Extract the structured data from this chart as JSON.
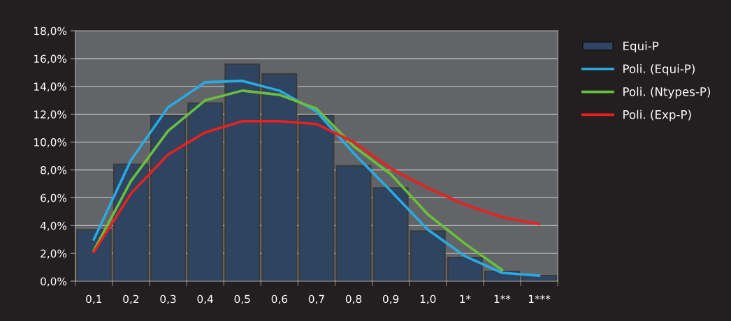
{
  "chart_data": {
    "type": "bar",
    "categories": [
      "0,1",
      "0,2",
      "0,3",
      "0,4",
      "0,5",
      "0,6",
      "0,7",
      "0,8",
      "0,9",
      "1,0",
      "1*",
      "1**",
      "1***"
    ],
    "series": [
      {
        "name": "Equi-P",
        "color": "#2e4460",
        "values": [
          3.7,
          8.4,
          11.9,
          12.8,
          15.6,
          14.9,
          11.9,
          8.3,
          6.7,
          3.6,
          1.7,
          0.7,
          0.4
        ]
      },
      {
        "name": "Poli. (Equi-P)",
        "type": "line",
        "color": "#29abe2",
        "values": [
          3.0,
          8.7,
          12.5,
          14.3,
          14.4,
          13.7,
          12.2,
          9.2,
          6.5,
          3.7,
          1.8,
          0.6,
          0.4
        ]
      },
      {
        "name": "Poli. (Ntypes-P)",
        "type": "line",
        "color": "#6abf3c",
        "values": [
          2.2,
          7.2,
          10.8,
          13.0,
          13.7,
          13.4,
          12.4,
          9.7,
          7.7,
          4.8,
          2.7,
          0.8,
          null
        ]
      },
      {
        "name": "Poli. (Exp-P)",
        "type": "line",
        "color": "#e8211f",
        "values": [
          2.1,
          6.3,
          9.1,
          10.7,
          11.5,
          11.5,
          11.3,
          10.0,
          8.1,
          6.7,
          5.5,
          4.6,
          4.1
        ]
      }
    ],
    "ylim": [
      0,
      18
    ],
    "yticks": [
      {
        "value": 0,
        "label": "0,0%"
      },
      {
        "value": 2,
        "label": "2,0%"
      },
      {
        "value": 4,
        "label": "4,0%"
      },
      {
        "value": 6,
        "label": "6,0%"
      },
      {
        "value": 8,
        "label": "8,0%"
      },
      {
        "value": 10,
        "label": "10,0%"
      },
      {
        "value": 12,
        "label": "12,0%"
      },
      {
        "value": 14,
        "label": "14,0%"
      },
      {
        "value": 16,
        "label": "16,0%"
      },
      {
        "value": 18,
        "label": "18,0%"
      }
    ],
    "grid": "y",
    "legend": "top right"
  }
}
